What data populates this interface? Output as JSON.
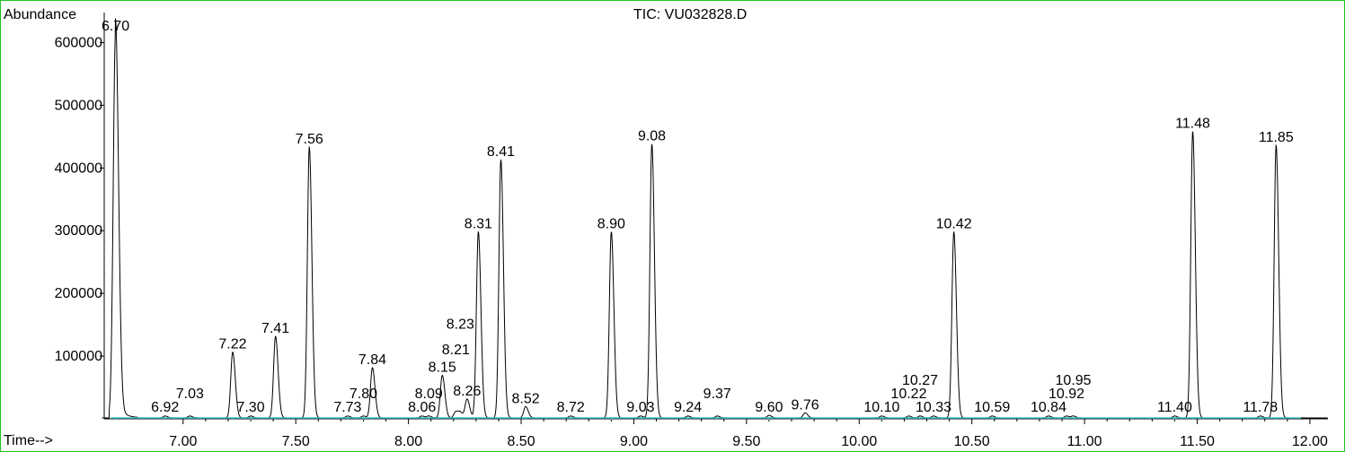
{
  "chart_data": {
    "type": "line",
    "title": "TIC: VU032828.D",
    "ylabel": "Abundance",
    "xlabel": "Time-->",
    "xlim": [
      6.65,
      12.08
    ],
    "ylim": [
      0,
      625000
    ],
    "x_ticks": [
      "7.00",
      "7.50",
      "8.00",
      "8.50",
      "9.00",
      "9.50",
      "10.00",
      "10.50",
      "11.00",
      "11.50",
      "12.00"
    ],
    "y_ticks": [
      "100000",
      "200000",
      "300000",
      "400000",
      "500000",
      "600000"
    ],
    "colors": {
      "trace": "#000000",
      "baseline": "#3fc2c8",
      "frame": "#22c322"
    },
    "peaks": [
      {
        "label": "6.70",
        "rt": 6.7,
        "height": 612000
      },
      {
        "label": "6.92",
        "rt": 6.92,
        "height": 3000
      },
      {
        "label": "7.03",
        "rt": 7.03,
        "height": 3000
      },
      {
        "label": "7.22",
        "rt": 7.22,
        "height": 105000
      },
      {
        "label": "7.30",
        "rt": 7.3,
        "height": 3000
      },
      {
        "label": "7.41",
        "rt": 7.41,
        "height": 130000
      },
      {
        "label": "7.56",
        "rt": 7.56,
        "height": 432000
      },
      {
        "label": "7.73",
        "rt": 7.73,
        "height": 3000
      },
      {
        "label": "7.80",
        "rt": 7.8,
        "height": 3000
      },
      {
        "label": "7.84",
        "rt": 7.84,
        "height": 80000
      },
      {
        "label": "8.06",
        "rt": 8.06,
        "height": 3000
      },
      {
        "label": "8.09",
        "rt": 8.09,
        "height": 3000
      },
      {
        "label": "8.15",
        "rt": 8.15,
        "height": 68000
      },
      {
        "label": "8.21",
        "rt": 8.21,
        "height": 10000
      },
      {
        "label": "8.23",
        "rt": 8.23,
        "height": 8000
      },
      {
        "label": "8.26",
        "rt": 8.26,
        "height": 30000
      },
      {
        "label": "8.31",
        "rt": 8.31,
        "height": 297000
      },
      {
        "label": "8.41",
        "rt": 8.41,
        "height": 412000
      },
      {
        "label": "8.52",
        "rt": 8.52,
        "height": 18000
      },
      {
        "label": "8.72",
        "rt": 8.72,
        "height": 3000
      },
      {
        "label": "8.90",
        "rt": 8.9,
        "height": 297000
      },
      {
        "label": "9.03",
        "rt": 9.03,
        "height": 3000
      },
      {
        "label": "9.08",
        "rt": 9.08,
        "height": 437000
      },
      {
        "label": "9.24",
        "rt": 9.24,
        "height": 3000
      },
      {
        "label": "9.37",
        "rt": 9.37,
        "height": 3000
      },
      {
        "label": "9.60",
        "rt": 9.6,
        "height": 4000
      },
      {
        "label": "9.76",
        "rt": 9.76,
        "height": 8000
      },
      {
        "label": "10.10",
        "rt": 10.1,
        "height": 3000
      },
      {
        "label": "10.22",
        "rt": 10.22,
        "height": 3000
      },
      {
        "label": "10.27",
        "rt": 10.27,
        "height": 3000
      },
      {
        "label": "10.33",
        "rt": 10.33,
        "height": 3000
      },
      {
        "label": "10.42",
        "rt": 10.42,
        "height": 297000
      },
      {
        "label": "10.59",
        "rt": 10.59,
        "height": 3000
      },
      {
        "label": "10.84",
        "rt": 10.84,
        "height": 3000
      },
      {
        "label": "10.92",
        "rt": 10.92,
        "height": 3000
      },
      {
        "label": "10.95",
        "rt": 10.95,
        "height": 3000
      },
      {
        "label": "11.40",
        "rt": 11.4,
        "height": 3000
      },
      {
        "label": "11.48",
        "rt": 11.48,
        "height": 457000
      },
      {
        "label": "11.78",
        "rt": 11.78,
        "height": 3000
      },
      {
        "label": "11.85",
        "rt": 11.85,
        "height": 435000
      }
    ]
  }
}
